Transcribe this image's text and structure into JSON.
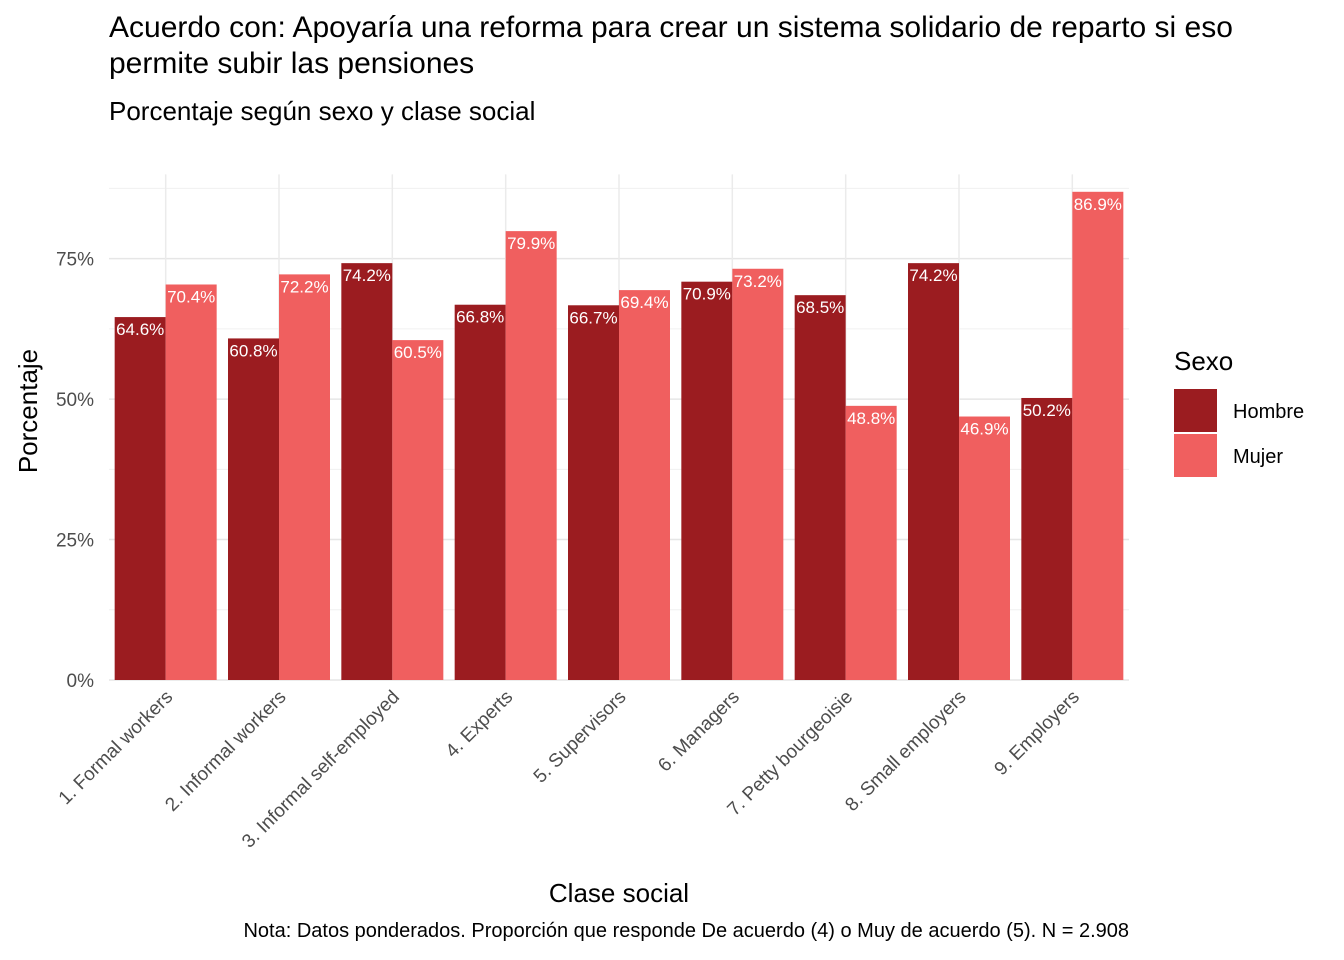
{
  "title": "Acuerdo con: Apoyaría una reforma para crear un sistema solidario de reparto si eso permite subir las pensiones",
  "subtitle": "Porcentaje según sexo y clase social",
  "caption": "Nota: Datos ponderados. Proporción que responde De acuerdo (4) o Muy de acuerdo (5). N = 2.908",
  "chart_data": {
    "type": "bar",
    "xlabel": "Clase social",
    "ylabel": "Porcentaje",
    "ylim": [
      0,
      90
    ],
    "yticks": [
      0,
      25,
      50,
      75
    ],
    "ytick_labels": [
      "0%",
      "25%",
      "50%",
      "75%"
    ],
    "grid": true,
    "legend_title": "Sexo",
    "legend_position": "right",
    "categories": [
      "1. Formal workers",
      "2. Informal workers",
      "3. Informal self-employed",
      "4. Experts",
      "5. Supervisors",
      "6. Managers",
      "7. Petty bourgeoisie",
      "8. Small employers",
      "9. Employers"
    ],
    "series": [
      {
        "name": "Hombre",
        "color": "#9b1c20",
        "values": [
          64.6,
          60.8,
          74.2,
          66.8,
          66.7,
          70.9,
          68.5,
          74.2,
          50.2
        ],
        "labels": [
          "64.6%",
          "60.8%",
          "74.2%",
          "66.8%",
          "66.7%",
          "70.9%",
          "68.5%",
          "74.2%",
          "50.2%"
        ]
      },
      {
        "name": "Mujer",
        "color": "#f05f5f",
        "values": [
          70.4,
          72.2,
          60.5,
          79.9,
          69.4,
          73.2,
          48.8,
          46.9,
          86.9
        ],
        "labels": [
          "70.4%",
          "72.2%",
          "60.5%",
          "79.9%",
          "69.4%",
          "73.2%",
          "48.8%",
          "46.9%",
          "86.9%"
        ]
      }
    ]
  }
}
